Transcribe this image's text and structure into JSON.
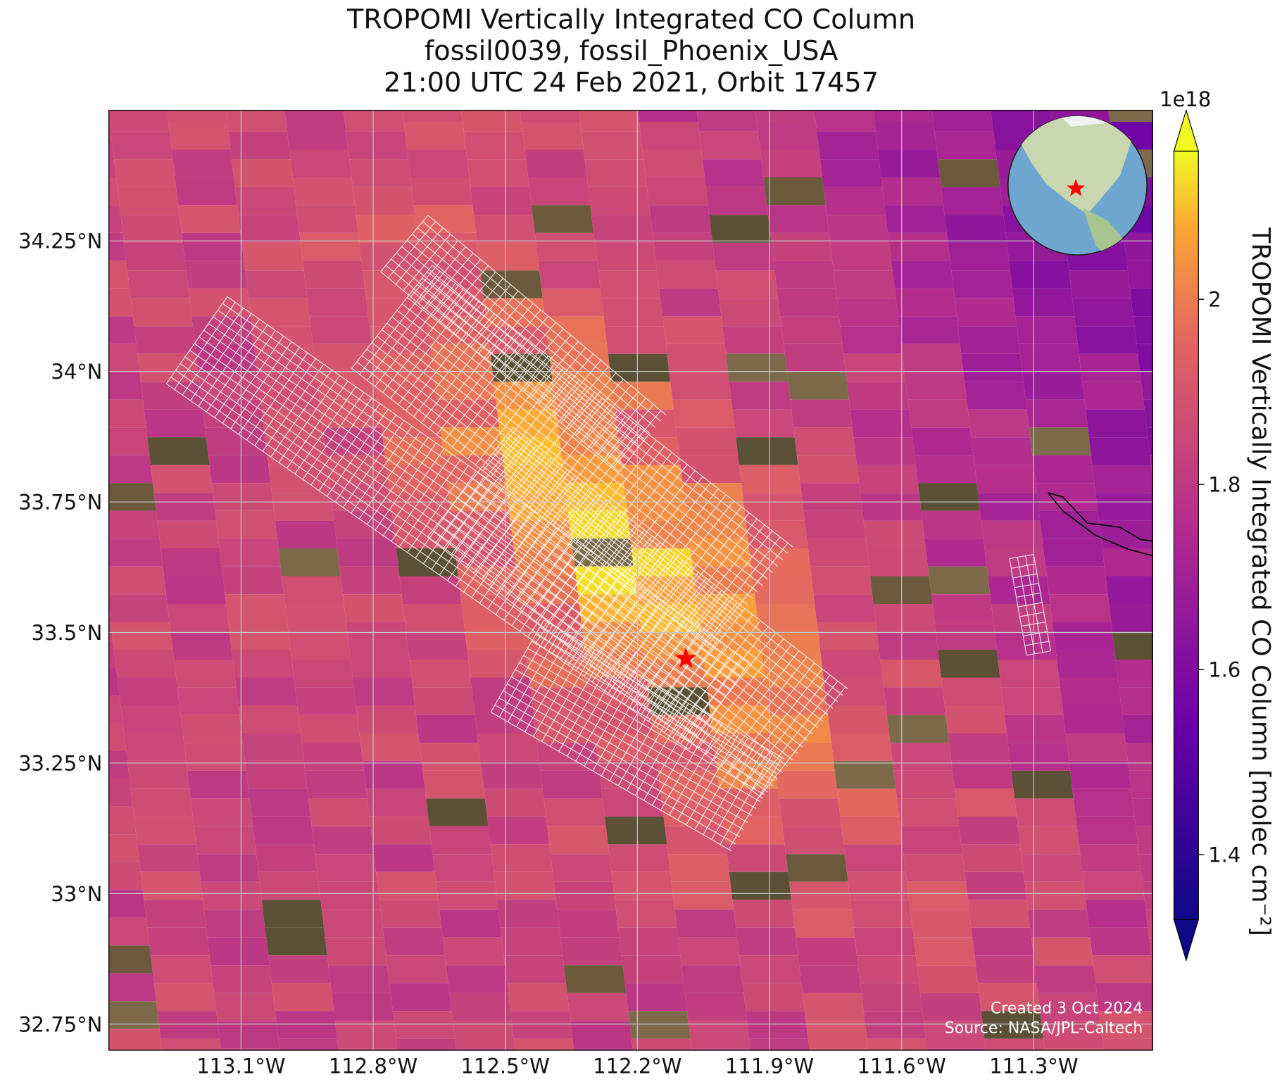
{
  "chart_data": {
    "type": "map",
    "title": [
      "TROPOMI Vertically Integrated CO Column",
      "fossil0039, fossil_Phoenix_USA",
      "21:00 UTC 24 Feb 2021, Orbit 17457"
    ],
    "xlim": [
      -113.4,
      -111.03
    ],
    "ylim": [
      32.7,
      34.5
    ],
    "xticks": [
      {
        "value": -113.1,
        "label": "113.1°W"
      },
      {
        "value": -112.8,
        "label": "112.8°W"
      },
      {
        "value": -112.5,
        "label": "112.5°W"
      },
      {
        "value": -112.2,
        "label": "112.2°W"
      },
      {
        "value": -111.9,
        "label": "111.9°W"
      },
      {
        "value": -111.6,
        "label": "111.6°W"
      },
      {
        "value": -111.3,
        "label": "111.3°W"
      }
    ],
    "yticks": [
      {
        "value": 32.75,
        "label": "32.75°N"
      },
      {
        "value": 33,
        "label": "33°N"
      },
      {
        "value": 33.25,
        "label": "33.25°N"
      },
      {
        "value": 33.5,
        "label": "33.5°N"
      },
      {
        "value": 33.75,
        "label": "33.75°N"
      },
      {
        "value": 34,
        "label": "34°N"
      },
      {
        "value": 34.25,
        "label": "34.25°N"
      }
    ],
    "grid": true,
    "site": {
      "lon": -112.09,
      "lat": 33.45,
      "color": "#ff0000"
    },
    "colorbar": {
      "label": "TROPOMI Vertically Integrated CO Column [molec cm⁻²]",
      "offset": "1e18",
      "clim": [
        1.33,
        2.16
      ],
      "ticks": [
        1.4,
        1.6,
        1.8,
        2.0
      ],
      "colormap": "plasma"
    },
    "annotations": [
      "Created 3 Oct 2024",
      "Source: NASA/JPL-Caltech"
    ]
  }
}
